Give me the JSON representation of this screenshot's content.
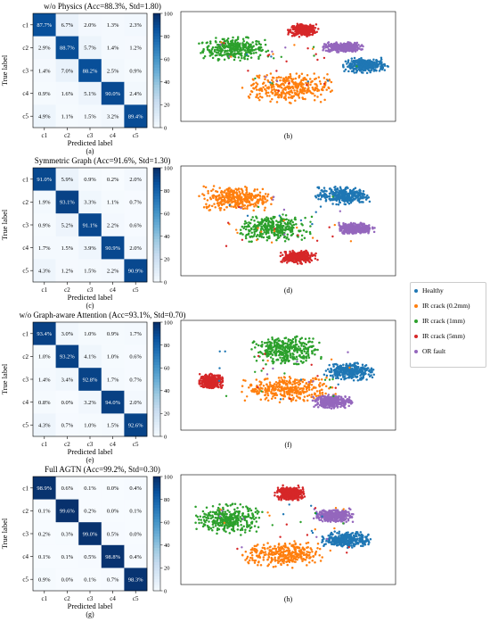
{
  "chart_data": [
    {
      "type": "heatmap",
      "title": "w/o Physics  (Acc=88.3%, Std=1.80)",
      "xlabel": "Predicted label",
      "ylabel": "True label",
      "caption": "(a)",
      "row_labels": [
        "c1",
        "c2",
        "c3",
        "c4",
        "c5"
      ],
      "col_labels": [
        "c1",
        "c2",
        "c3",
        "c4",
        "c5"
      ],
      "values": [
        [
          87.7,
          6.7,
          2.0,
          1.3,
          2.3
        ],
        [
          2.9,
          88.7,
          5.7,
          1.4,
          1.2
        ],
        [
          1.4,
          7.0,
          88.2,
          2.5,
          0.9
        ],
        [
          0.9,
          1.6,
          5.1,
          90.0,
          2.4
        ],
        [
          4.9,
          1.1,
          1.5,
          3.2,
          89.4
        ]
      ],
      "colorbar_ticks": [
        0,
        20,
        40,
        60,
        80,
        100
      ],
      "colorbar_range": [
        0,
        100
      ],
      "colormap": "Blues"
    },
    {
      "type": "scatter",
      "caption": "(b)",
      "classes": [
        "Healthy",
        "IR crack (0.2mm)",
        "IR crack (1mm)",
        "IR crack (5mm)",
        "OR fault"
      ],
      "clusters": [
        {
          "class": "IR crack (1mm)",
          "center": [
            -0.55,
            0.35
          ],
          "spread": [
            0.28,
            0.18
          ]
        },
        {
          "class": "IR crack (5mm)",
          "center": [
            0.15,
            0.72
          ],
          "spread": [
            0.12,
            0.1
          ]
        },
        {
          "class": "OR fault",
          "center": [
            0.55,
            0.38
          ],
          "spread": [
            0.16,
            0.08
          ]
        },
        {
          "class": "Healthy",
          "center": [
            0.78,
            0.02
          ],
          "spread": [
            0.18,
            0.12
          ]
        },
        {
          "class": "IR crack (0.2mm)",
          "center": [
            0.0,
            -0.42
          ],
          "spread": [
            0.36,
            0.24
          ]
        }
      ]
    },
    {
      "type": "heatmap",
      "title": "Symmetric Graph  (Acc=91.6%, Std=1.30)",
      "xlabel": "Predicted label",
      "ylabel": "True label",
      "caption": "(c)",
      "row_labels": [
        "c1",
        "c2",
        "c3",
        "c4",
        "c5"
      ],
      "col_labels": [
        "c1",
        "c2",
        "c3",
        "c4",
        "c5"
      ],
      "values": [
        [
          91.0,
          5.9,
          0.9,
          0.2,
          2.0
        ],
        [
          1.9,
          93.1,
          3.3,
          1.1,
          0.7
        ],
        [
          0.9,
          5.2,
          91.1,
          2.2,
          0.6
        ],
        [
          1.7,
          1.5,
          3.9,
          90.9,
          2.0
        ],
        [
          4.3,
          1.2,
          1.5,
          2.2,
          90.9
        ]
      ],
      "colorbar_ticks": [
        0,
        20,
        40,
        60,
        80,
        100
      ],
      "colorbar_range": [
        0,
        100
      ],
      "colormap": "Blues"
    },
    {
      "type": "scatter",
      "caption": "(d)",
      "classes": [
        "Healthy",
        "IR crack (0.2mm)",
        "IR crack (1mm)",
        "IR crack (5mm)",
        "OR fault"
      ],
      "clusters": [
        {
          "class": "IR crack (0.2mm)",
          "center": [
            -0.52,
            0.45
          ],
          "spread": [
            0.3,
            0.2
          ]
        },
        {
          "class": "Healthy",
          "center": [
            0.55,
            0.5
          ],
          "spread": [
            0.22,
            0.14
          ]
        },
        {
          "class": "OR fault",
          "center": [
            0.68,
            -0.15
          ],
          "spread": [
            0.15,
            0.09
          ]
        },
        {
          "class": "IR crack (1mm)",
          "center": [
            -0.15,
            -0.15
          ],
          "spread": [
            0.3,
            0.2
          ]
        },
        {
          "class": "IR crack (5mm)",
          "center": [
            0.1,
            -0.72
          ],
          "spread": [
            0.14,
            0.1
          ]
        }
      ]
    },
    {
      "type": "heatmap",
      "title": "w/o Graph-aware Attention  (Acc=93.1%, Std=0.70)",
      "xlabel": "Predicted label",
      "ylabel": "True label",
      "caption": "(e)",
      "row_labels": [
        "c1",
        "c2",
        "c3",
        "c4",
        "c5"
      ],
      "col_labels": [
        "c1",
        "c2",
        "c3",
        "c4",
        "c5"
      ],
      "values": [
        [
          93.4,
          3.0,
          1.0,
          0.9,
          1.7
        ],
        [
          1.0,
          93.2,
          4.1,
          1.0,
          0.6
        ],
        [
          1.4,
          3.4,
          92.8,
          1.7,
          0.7
        ],
        [
          0.8,
          0.0,
          3.2,
          94.0,
          2.0
        ],
        [
          4.3,
          0.7,
          1.0,
          1.5,
          92.6
        ]
      ],
      "colorbar_ticks": [
        0,
        20,
        40,
        60,
        80,
        100
      ],
      "colorbar_range": [
        0,
        100
      ],
      "colormap": "Blues"
    },
    {
      "type": "scatter",
      "caption": "(f)",
      "classes": [
        "Healthy",
        "IR crack (0.2mm)",
        "IR crack (1mm)",
        "IR crack (5mm)",
        "OR fault"
      ],
      "clusters": [
        {
          "class": "IR crack (1mm)",
          "center": [
            -0.02,
            0.5
          ],
          "spread": [
            0.28,
            0.22
          ]
        },
        {
          "class": "Healthy",
          "center": [
            0.62,
            0.08
          ],
          "spread": [
            0.2,
            0.14
          ]
        },
        {
          "class": "IR crack (5mm)",
          "center": [
            -0.78,
            -0.12
          ],
          "spread": [
            0.1,
            0.12
          ]
        },
        {
          "class": "IR crack (0.2mm)",
          "center": [
            0.0,
            -0.28
          ],
          "spread": [
            0.38,
            0.2
          ]
        },
        {
          "class": "OR fault",
          "center": [
            0.45,
            -0.52
          ],
          "spread": [
            0.16,
            0.11
          ]
        }
      ]
    },
    {
      "type": "heatmap",
      "title": "Full AGTN  (Acc=99.2%, Std=0.30)",
      "xlabel": "Predicted label",
      "ylabel": "True label",
      "caption": "(g)",
      "row_labels": [
        "c1",
        "c2",
        "c3",
        "c4",
        "c5"
      ],
      "col_labels": [
        "c1",
        "c2",
        "c3",
        "c4",
        "c5"
      ],
      "values": [
        [
          98.9,
          0.6,
          0.1,
          0.0,
          0.4
        ],
        [
          0.1,
          99.6,
          0.2,
          0.0,
          0.1
        ],
        [
          0.2,
          0.3,
          99.0,
          0.5,
          0.0
        ],
        [
          0.1,
          0.1,
          0.5,
          98.8,
          0.4
        ],
        [
          0.9,
          0.0,
          0.1,
          0.7,
          98.3
        ]
      ],
      "colorbar_ticks": [
        0,
        20,
        40,
        60,
        80,
        100
      ],
      "colorbar_range": [
        0,
        100
      ],
      "colormap": "Blues"
    },
    {
      "type": "scatter",
      "caption": "(h)",
      "classes": [
        "Healthy",
        "IR crack (0.2mm)",
        "IR crack (1mm)",
        "IR crack (5mm)",
        "OR fault"
      ],
      "clusters": [
        {
          "class": "IR crack (5mm)",
          "center": [
            0.02,
            0.72
          ],
          "spread": [
            0.12,
            0.12
          ]
        },
        {
          "class": "IR crack (1mm)",
          "center": [
            -0.6,
            0.2
          ],
          "spread": [
            0.26,
            0.24
          ]
        },
        {
          "class": "OR fault",
          "center": [
            0.45,
            0.28
          ],
          "spread": [
            0.16,
            0.1
          ]
        },
        {
          "class": "Healthy",
          "center": [
            0.6,
            -0.2
          ],
          "spread": [
            0.2,
            0.13
          ]
        },
        {
          "class": "IR crack (0.2mm)",
          "center": [
            -0.05,
            -0.5
          ],
          "spread": [
            0.32,
            0.2
          ]
        }
      ]
    }
  ],
  "legend": {
    "entries": [
      {
        "label": "Healthy",
        "color": "#1f77b4"
      },
      {
        "label": "IR crack (0.2mm)",
        "color": "#ff7f0e"
      },
      {
        "label": "IR crack (1mm)",
        "color": "#2ca02c"
      },
      {
        "label": "IR crack (5mm)",
        "color": "#d62728"
      },
      {
        "label": "OR fault",
        "color": "#9467bd"
      }
    ],
    "placement": "right"
  }
}
